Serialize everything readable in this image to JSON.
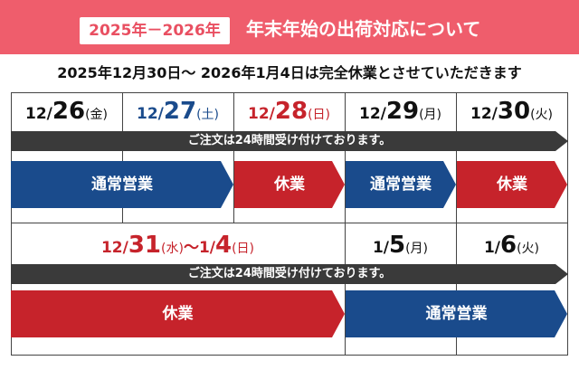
{
  "header": {
    "badge": "2025年－2026年",
    "title": "年末年始の出荷対応について"
  },
  "notice": "2025年12月30日～ 2026年1月4日は完全休業とさせていただきます",
  "colors": {
    "header_bg": "#ef5d6c",
    "weekday_text": "#111111",
    "saturday_text": "#1a4b8c",
    "sunday_holiday_text": "#c6232b",
    "operating_bar": "#1a4b8c",
    "closed_bar": "#c6232b",
    "note_bar": "#3a3a3a"
  },
  "row1": {
    "dates": [
      {
        "month": "12/",
        "day": "26",
        "dow": "(金)"
      },
      {
        "month": "12/",
        "day": "27",
        "dow": "(土)"
      },
      {
        "month": "12/",
        "day": "28",
        "dow": "(日)"
      },
      {
        "month": "12/",
        "day": "29",
        "dow": "(月)"
      },
      {
        "month": "12/",
        "day": "30",
        "dow": "(火)"
      }
    ],
    "note": "ご注文は24時間受け付けております。",
    "bars": [
      "通常営業",
      "休業",
      "通常営業",
      "休業"
    ]
  },
  "row2": {
    "range": {
      "m1": "12/",
      "d1": "31",
      "w1": "(水)",
      "sep": "～",
      "m2": "1/",
      "d2": "4",
      "w2": "(日)"
    },
    "dates": [
      {
        "month": "1/",
        "day": "5",
        "dow": "(月)"
      },
      {
        "month": "1/",
        "day": "6",
        "dow": "(火)"
      }
    ],
    "note": "ご注文は24時間受け付けております。",
    "bars": [
      "休業",
      "通常営業"
    ]
  }
}
